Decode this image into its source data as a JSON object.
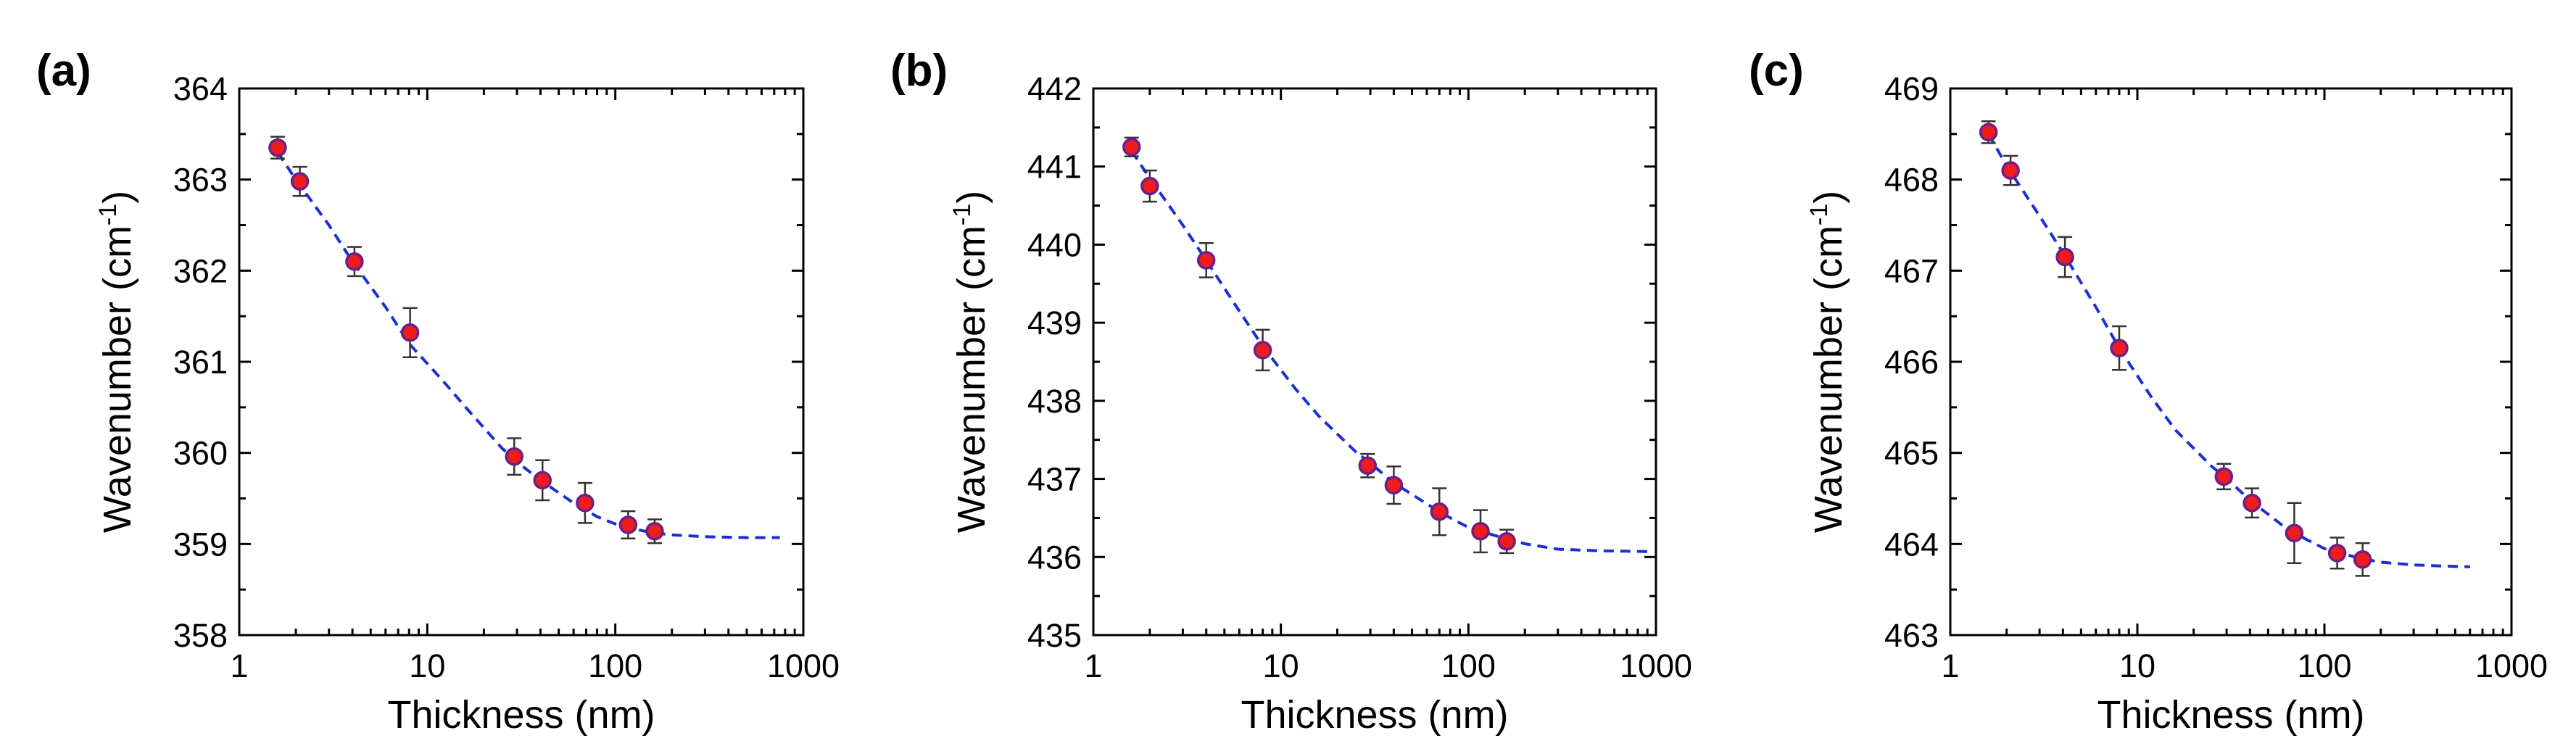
{
  "chart_data": [
    {
      "type": "scatter",
      "panel_label": "(a)",
      "xlabel": "Thickness (nm)",
      "ylabel": "Wavenumber (cm",
      "ylabel_superscript": "-1",
      "ylabel_close": ")",
      "xscale": "log",
      "xlim": [
        1,
        1000
      ],
      "ylim": [
        358,
        364
      ],
      "xticks": [
        1,
        10,
        100,
        1000
      ],
      "xtick_labels": [
        "1",
        "10",
        "100",
        "1000"
      ],
      "yticks": [
        358,
        359,
        360,
        361,
        362,
        363,
        364
      ],
      "ytick_labels": [
        "358",
        "359",
        "360",
        "361",
        "362",
        "363",
        "364"
      ],
      "series": [
        {
          "name": "data",
          "x": [
            1.6,
            2.1,
            4.1,
            8.1,
            29,
            41,
            69,
            117,
            162
          ],
          "y": [
            363.35,
            362.98,
            362.1,
            361.32,
            359.96,
            359.7,
            359.45,
            359.21,
            359.14
          ],
          "yerr": [
            0.12,
            0.16,
            0.16,
            0.27,
            0.2,
            0.22,
            0.22,
            0.15,
            0.13
          ]
        },
        {
          "name": "fit",
          "style": "dashed",
          "x": [
            1.6,
            2,
            3,
            4,
            6,
            8,
            12,
            16,
            25,
            30,
            40,
            60,
            80,
            100,
            150,
            200,
            300,
            500,
            750
          ],
          "y": [
            363.3,
            363.0,
            362.5,
            362.1,
            361.6,
            361.2,
            360.8,
            360.5,
            360.05,
            359.9,
            359.7,
            359.45,
            359.3,
            359.22,
            359.13,
            359.1,
            359.08,
            359.07,
            359.07
          ]
        }
      ]
    },
    {
      "type": "scatter",
      "panel_label": "(b)",
      "xlabel": "Thickness (nm)",
      "ylabel": "Wavenumber (cm",
      "ylabel_superscript": "-1",
      "ylabel_close": ")",
      "xscale": "log",
      "xlim": [
        1,
        1000
      ],
      "ylim": [
        435,
        442
      ],
      "xticks": [
        1,
        10,
        100,
        1000
      ],
      "xtick_labels": [
        "1",
        "10",
        "100",
        "1000"
      ],
      "yticks": [
        435,
        436,
        437,
        438,
        439,
        440,
        441,
        442
      ],
      "ytick_labels": [
        "435",
        "436",
        "437",
        "438",
        "439",
        "440",
        "441",
        "442"
      ],
      "series": [
        {
          "name": "data",
          "x": [
            1.6,
            2.0,
            4.0,
            8.0,
            29,
            40,
            70,
            116,
            160
          ],
          "y": [
            441.25,
            440.75,
            439.8,
            438.65,
            437.17,
            436.92,
            436.58,
            436.33,
            436.2
          ],
          "yerr": [
            0.12,
            0.2,
            0.22,
            0.26,
            0.15,
            0.24,
            0.3,
            0.27,
            0.15
          ]
        },
        {
          "name": "fit",
          "style": "dashed",
          "x": [
            1.6,
            2,
            3,
            4,
            6,
            8,
            12,
            16,
            25,
            30,
            40,
            60,
            80,
            100,
            150,
            200,
            300,
            500,
            900
          ],
          "y": [
            441.2,
            440.85,
            440.25,
            439.8,
            439.15,
            438.7,
            438.15,
            437.8,
            437.35,
            437.2,
            436.95,
            436.68,
            436.5,
            436.38,
            436.25,
            436.17,
            436.1,
            436.08,
            436.07
          ]
        }
      ]
    },
    {
      "type": "scatter",
      "panel_label": "(c)",
      "xlabel": "Thickness (nm)",
      "ylabel": "Wavenumber (cm",
      "ylabel_superscript": "-1",
      "ylabel_close": ")",
      "xscale": "log",
      "xlim": [
        1,
        1000
      ],
      "ylim": [
        463,
        469
      ],
      "xticks": [
        1,
        10,
        100,
        1000
      ],
      "xtick_labels": [
        "1",
        "10",
        "100",
        "1000"
      ],
      "yticks": [
        463,
        464,
        465,
        466,
        467,
        468,
        469
      ],
      "ytick_labels": [
        "463",
        "464",
        "465",
        "466",
        "467",
        "468",
        "469"
      ],
      "series": [
        {
          "name": "data",
          "x": [
            1.6,
            2.1,
            4.1,
            8.0,
            29,
            41,
            69,
            117,
            160
          ],
          "y": [
            468.52,
            468.1,
            467.15,
            466.15,
            464.74,
            464.45,
            464.12,
            463.9,
            463.83
          ],
          "yerr": [
            0.12,
            0.16,
            0.22,
            0.24,
            0.14,
            0.16,
            0.33,
            0.17,
            0.18
          ]
        },
        {
          "name": "fit",
          "style": "dashed",
          "x": [
            1.6,
            2,
            3,
            4,
            6,
            8,
            12,
            16,
            25,
            30,
            40,
            60,
            80,
            100,
            150,
            200,
            300,
            400,
            600
          ],
          "y": [
            468.5,
            468.15,
            467.6,
            467.2,
            466.6,
            466.15,
            465.6,
            465.25,
            464.85,
            464.72,
            464.48,
            464.2,
            464.05,
            463.95,
            463.85,
            463.8,
            463.77,
            463.76,
            463.75
          ]
        }
      ]
    }
  ]
}
